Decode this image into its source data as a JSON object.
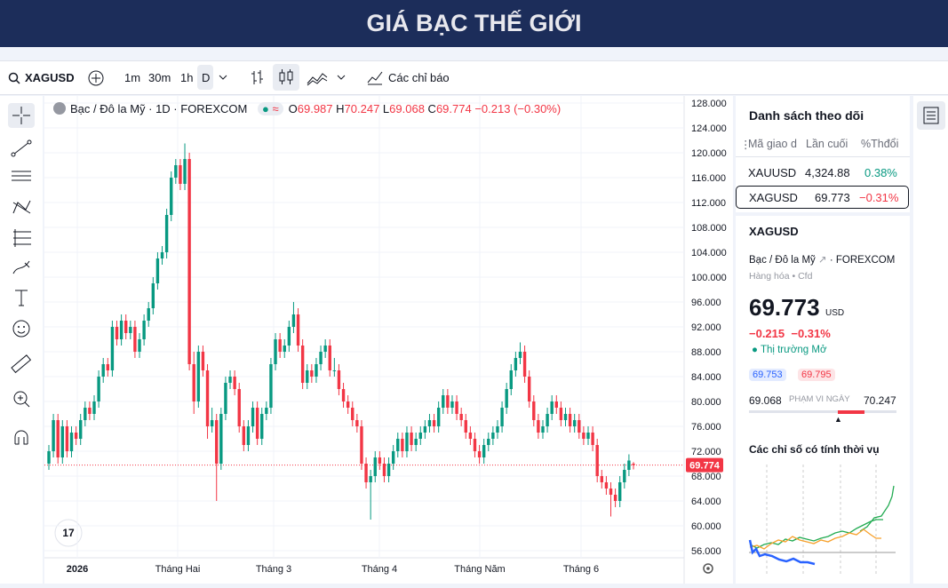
{
  "header": {
    "title": "GIÁ BẠC THẾ GIỚI"
  },
  "toolbar": {
    "symbol": "XAGUSD",
    "intervals": [
      "1m",
      "30m",
      "1h",
      "D"
    ],
    "indicators": "Các chỉ báo"
  },
  "chart_data": {
    "type": "candlestick",
    "legend": {
      "name": "Bạc / Đô la Mỹ · 1D · FOREXCOM",
      "ohlc": [
        {
          "label": "O",
          "value": 69.987
        },
        {
          "label": "H",
          "value": 70.247
        },
        {
          "label": "L",
          "value": 69.068
        },
        {
          "label": "C",
          "value": 69.774
        }
      ],
      "change": "−0.213",
      "change_pct": "(−0.30%)"
    },
    "up_color": "#089981",
    "down_color": "#f23645",
    "ylim": [
      56,
      128
    ],
    "yticks": [
      {
        "value": 56,
        "label": "56.000"
      },
      {
        "value": 60,
        "label": "60.000"
      },
      {
        "value": 64,
        "label": "64.000"
      },
      {
        "value": 68,
        "label": "68.000"
      },
      {
        "value": 72,
        "label": "72.000"
      },
      {
        "value": 76,
        "label": "76.000"
      },
      {
        "value": 80,
        "label": "80.000"
      },
      {
        "value": 84,
        "label": "84.000"
      },
      {
        "value": 88,
        "label": "88.000"
      },
      {
        "value": 92,
        "label": "92.000"
      },
      {
        "value": 96,
        "label": "96.000"
      },
      {
        "value": 100,
        "label": "100.000"
      },
      {
        "value": 104,
        "label": "104.000"
      },
      {
        "value": 108,
        "label": "108.000"
      },
      {
        "value": 112,
        "label": "112.000"
      },
      {
        "value": 116,
        "label": "116.000"
      },
      {
        "value": 120,
        "label": "120.000"
      },
      {
        "value": 124,
        "label": "124.000"
      },
      {
        "value": 128,
        "label": "128.000"
      }
    ],
    "x_labels": [
      "2026",
      "Tháng Hai",
      "Tháng 3",
      "Tháng 4",
      "Tháng Năm",
      "Tháng 6"
    ],
    "last_price": 69.774,
    "ohlc": [
      [
        70,
        73,
        69,
        72
      ],
      [
        72,
        78,
        71,
        77
      ],
      [
        77,
        78,
        70,
        71
      ],
      [
        71,
        77,
        70,
        76
      ],
      [
        76,
        77,
        71,
        72
      ],
      [
        72,
        76,
        71,
        75
      ],
      [
        75,
        76,
        73,
        74
      ],
      [
        74,
        78,
        73,
        77
      ],
      [
        77,
        80,
        76,
        79
      ],
      [
        79,
        80,
        77,
        78
      ],
      [
        78,
        81,
        77,
        80
      ],
      [
        80,
        85,
        79,
        84
      ],
      [
        84,
        87,
        83,
        86
      ],
      [
        86,
        87,
        84,
        85
      ],
      [
        85,
        93,
        84,
        92
      ],
      [
        92,
        93,
        89,
        90
      ],
      [
        90,
        94,
        89,
        93
      ],
      [
        93,
        94,
        90,
        91
      ],
      [
        91,
        93,
        90,
        92
      ],
      [
        92,
        93,
        87,
        88
      ],
      [
        88,
        91,
        87,
        90
      ],
      [
        90,
        94,
        89,
        93
      ],
      [
        93,
        96,
        92,
        95
      ],
      [
        95,
        100,
        94,
        99
      ],
      [
        99,
        104,
        98,
        103
      ],
      [
        103,
        105,
        102,
        104
      ],
      [
        104,
        111,
        103,
        110
      ],
      [
        110,
        117,
        109,
        116
      ],
      [
        116,
        119,
        115,
        118
      ],
      [
        118,
        119,
        114,
        115
      ],
      [
        115,
        121.5,
        114,
        119
      ],
      [
        119,
        120,
        85,
        86
      ],
      [
        86,
        88,
        78,
        80
      ],
      [
        80,
        89,
        79,
        88
      ],
      [
        88,
        89,
        84,
        85
      ],
      [
        85,
        86,
        74,
        76
      ],
      [
        76,
        79,
        75,
        77
      ],
      [
        77,
        78,
        64,
        70
      ],
      [
        70,
        79,
        69,
        78
      ],
      [
        78,
        84,
        77,
        83
      ],
      [
        83,
        85,
        82,
        84
      ],
      [
        84,
        85,
        81,
        82
      ],
      [
        82,
        83,
        75,
        76
      ],
      [
        76,
        77,
        72,
        73
      ],
      [
        73,
        77,
        72,
        76
      ],
      [
        76,
        80,
        75,
        79
      ],
      [
        79,
        80,
        73,
        74
      ],
      [
        74,
        79,
        73,
        78
      ],
      [
        78,
        80,
        77,
        79
      ],
      [
        79,
        87,
        78,
        86
      ],
      [
        86,
        91,
        85,
        90
      ],
      [
        90,
        91,
        87,
        88
      ],
      [
        88,
        90,
        87,
        89
      ],
      [
        89,
        93,
        88,
        92
      ],
      [
        92,
        96,
        91,
        94
      ],
      [
        94,
        95,
        88,
        89
      ],
      [
        89,
        90,
        82,
        83
      ],
      [
        83,
        86,
        82,
        85
      ],
      [
        85,
        86,
        83,
        84
      ],
      [
        84,
        87,
        83,
        86
      ],
      [
        86,
        89,
        85,
        88
      ],
      [
        88,
        90,
        87,
        89
      ],
      [
        89,
        90,
        84,
        85
      ],
      [
        85,
        87,
        84,
        85
      ],
      [
        85,
        86,
        81,
        82
      ],
      [
        82,
        83,
        79,
        80
      ],
      [
        80,
        81,
        78,
        79
      ],
      [
        79,
        80,
        76,
        77
      ],
      [
        77,
        78,
        75,
        76
      ],
      [
        76,
        77,
        69,
        70
      ],
      [
        70,
        71,
        66,
        67
      ],
      [
        67,
        69,
        61,
        68
      ],
      [
        68,
        72,
        67,
        71
      ],
      [
        71,
        72,
        69,
        70
      ],
      [
        70,
        71,
        67,
        68
      ],
      [
        68,
        71,
        67,
        70
      ],
      [
        70,
        73,
        69,
        72
      ],
      [
        72,
        75,
        71,
        74
      ],
      [
        74,
        75,
        71,
        72
      ],
      [
        72,
        76,
        71,
        75
      ],
      [
        75,
        76,
        72,
        73
      ],
      [
        73,
        75,
        72,
        74
      ],
      [
        74,
        76,
        73,
        75
      ],
      [
        75,
        77,
        74,
        76
      ],
      [
        76,
        78,
        75,
        77
      ],
      [
        77,
        78,
        75,
        76
      ],
      [
        76,
        80,
        75,
        79
      ],
      [
        79,
        82,
        78,
        81
      ],
      [
        81,
        82,
        78,
        79
      ],
      [
        79,
        81,
        78,
        80
      ],
      [
        80,
        81,
        77,
        78
      ],
      [
        78,
        79,
        76,
        77
      ],
      [
        77,
        78,
        74,
        75
      ],
      [
        75,
        76,
        73,
        74
      ],
      [
        74,
        75,
        71,
        72
      ],
      [
        72,
        73,
        70,
        71
      ],
      [
        71,
        74,
        70,
        73
      ],
      [
        73,
        75,
        72,
        74
      ],
      [
        74,
        76,
        73,
        75
      ],
      [
        75,
        77,
        74,
        76
      ],
      [
        76,
        80,
        75,
        79
      ],
      [
        79,
        83,
        78,
        82
      ],
      [
        82,
        86,
        81,
        85
      ],
      [
        85,
        88,
        84,
        87
      ],
      [
        87,
        89.5,
        86,
        88
      ],
      [
        88,
        89,
        83,
        84
      ],
      [
        84,
        85,
        79,
        80
      ],
      [
        80,
        81,
        76,
        77
      ],
      [
        77,
        78,
        74,
        75
      ],
      [
        75,
        77,
        74,
        76
      ],
      [
        76,
        79,
        75,
        78
      ],
      [
        78,
        81,
        77,
        80
      ],
      [
        80,
        81,
        78,
        79
      ],
      [
        79,
        80,
        76,
        77
      ],
      [
        77,
        79,
        76,
        78
      ],
      [
        78,
        79,
        75,
        76
      ],
      [
        76,
        78,
        75,
        77
      ],
      [
        77,
        78,
        74,
        75
      ],
      [
        75,
        76,
        73,
        74
      ],
      [
        74,
        76,
        73,
        75
      ],
      [
        75,
        76,
        72,
        73
      ],
      [
        73,
        74,
        67,
        68
      ],
      [
        68,
        69,
        66,
        67
      ],
      [
        67,
        68,
        65,
        66
      ],
      [
        66,
        67,
        61.5,
        65
      ],
      [
        65,
        66,
        63,
        64
      ],
      [
        64,
        68,
        63,
        67
      ],
      [
        67,
        70,
        66,
        69
      ],
      [
        69,
        71.5,
        68,
        70.5
      ],
      [
        69.987,
        70.247,
        69.068,
        69.774
      ]
    ]
  },
  "watchlist": {
    "title": "Danh sách theo dõi",
    "columns": [
      "Mã giao d",
      "Lần cuối",
      "%Thđổi"
    ],
    "rows": [
      {
        "symbol": "XAUUSD",
        "last": "4,324.88",
        "change": "0.38%"
      },
      {
        "symbol": "XAGUSD",
        "last": "69.773",
        "change": "−0.31%"
      }
    ]
  },
  "details": {
    "symbol": "XAGUSD",
    "name": "Bạc / Đô la Mỹ",
    "exchange": "FOREXCOM",
    "category": "Hàng hóa",
    "kind": "Cfd",
    "price": "69.773",
    "currency": "USD",
    "change": "−0.215",
    "change_pct": "−0.31%",
    "status": "Thị trường Mở",
    "bid": "69.753",
    "ask": "69.795",
    "range_low": "69.068",
    "range_label": "PHẠM VI NGÀY",
    "range_high": "70.247",
    "seasonal_title": "Các chỉ số có tính thời vụ"
  }
}
